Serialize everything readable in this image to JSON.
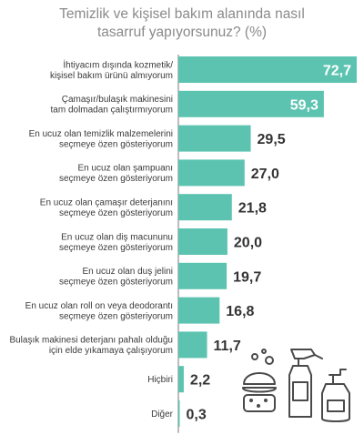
{
  "title_lines": [
    "Temizlik ve kişisel bakım alanında nasıl",
    "tasarruf yapıyorsunuz? (%)"
  ],
  "colors": {
    "bar": "#5cc3b0",
    "axis": "#7a7a7a",
    "title": "#8a8a8a"
  },
  "illustration_icons": [
    "sponge-icon",
    "spray-bottle-icon",
    "pump-bottle-icon"
  ],
  "chart_data": {
    "type": "bar",
    "orientation": "horizontal",
    "title": "Temizlik ve kişisel bakım alanında nasıl tasarruf yapıyorsunuz? (%)",
    "xlabel": "",
    "ylabel": "",
    "xlim": [
      0,
      72.7
    ],
    "grid": false,
    "categories": [
      [
        "İhtiyacım dışında kozmetik/",
        "kişisel bakım ürünü almıyorum"
      ],
      [
        "Çamaşır/bulaşık makinesini",
        "tam dolmadan çalıştırmıyorum"
      ],
      [
        "En ucuz olan temizlik malzemelerini",
        "seçmeye özen gösteriyorum"
      ],
      [
        "En ucuz olan şampuanı",
        "seçmeye özen gösteriyorum"
      ],
      [
        "En ucuz olan çamaşır deterjanını",
        "seçmeye özen gösteriyorum"
      ],
      [
        "En ucuz olan diş macununu",
        "seçmeye özen gösteriyorum"
      ],
      [
        "En ucuz olan duş jelini",
        "seçmeye özen gösteriyorum"
      ],
      [
        "En ucuz olan roll on veya deodorantı",
        "seçmeye özen gösteriyorum"
      ],
      [
        "Bulaşık makinesi deterjanı pahalı olduğu",
        "için elde yıkamaya çalışıyorum"
      ],
      [
        "Hiçbiri"
      ],
      [
        "Diğer"
      ]
    ],
    "values": [
      72.7,
      59.3,
      29.5,
      27.0,
      21.8,
      20.0,
      19.7,
      16.8,
      11.7,
      2.2,
      0.3
    ],
    "value_labels": [
      "72,7",
      "59,3",
      "29,5",
      "27,0",
      "21,8",
      "20,0",
      "19,7",
      "16,8",
      "11,7",
      "2,2",
      "0,3"
    ]
  }
}
